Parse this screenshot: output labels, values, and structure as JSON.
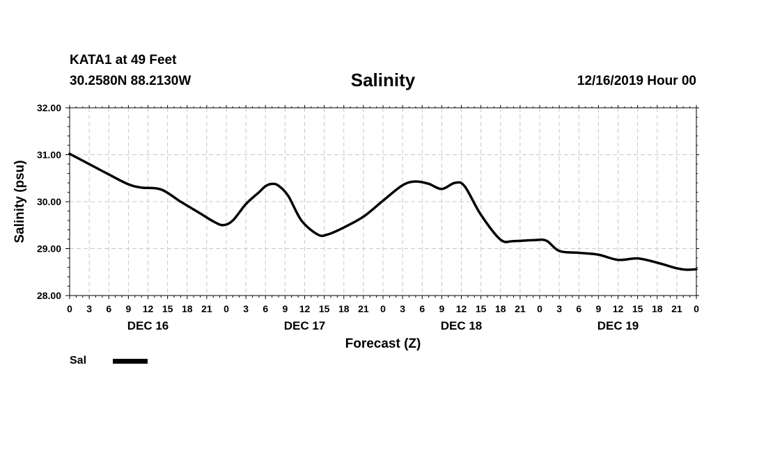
{
  "header": {
    "station": "KATA1 at 49 Feet",
    "coords": "30.2580N 88.2130W",
    "title": "Salinity",
    "run_time": "12/16/2019 Hour 00"
  },
  "chart_data": {
    "type": "line",
    "title": "Salinity",
    "xlabel": "Forecast (Z)",
    "ylabel": "Salinity (psu)",
    "ylim": [
      28.0,
      32.0
    ],
    "xlim_hours": [
      0,
      96
    ],
    "grid": true,
    "y_ticks": [
      28.0,
      29.0,
      30.0,
      31.0,
      32.0
    ],
    "y_tick_labels": [
      "28.00",
      "29.00",
      "30.00",
      "31.00",
      "32.00"
    ],
    "x_ticks_hours": [
      0,
      3,
      6,
      9,
      12,
      15,
      18,
      21,
      24,
      27,
      30,
      33,
      36,
      39,
      42,
      45,
      48,
      51,
      54,
      57,
      60,
      63,
      66,
      69,
      72,
      75,
      78,
      81,
      84,
      87,
      90,
      93,
      96
    ],
    "x_tick_labels": [
      "0",
      "3",
      "6",
      "9",
      "12",
      "15",
      "18",
      "21",
      "0",
      "3",
      "6",
      "9",
      "12",
      "15",
      "18",
      "21",
      "0",
      "3",
      "6",
      "9",
      "12",
      "15",
      "18",
      "21",
      "0",
      "3",
      "6",
      "9",
      "12",
      "15",
      "18",
      "21",
      "0"
    ],
    "day_labels": [
      {
        "label": "DEC 16",
        "hour": 12
      },
      {
        "label": "DEC 17",
        "hour": 36
      },
      {
        "label": "DEC 18",
        "hour": 60
      },
      {
        "label": "DEC 19",
        "hour": 84
      }
    ],
    "legend_placement": "bottom-left",
    "series": [
      {
        "name": "Sal",
        "color": "#000000",
        "points": [
          [
            0,
            31.02
          ],
          [
            3,
            30.8
          ],
          [
            6,
            30.58
          ],
          [
            9,
            30.37
          ],
          [
            11,
            30.3
          ],
          [
            14,
            30.26
          ],
          [
            17,
            30.0
          ],
          [
            20,
            29.75
          ],
          [
            22,
            29.58
          ],
          [
            23.5,
            29.5
          ],
          [
            25,
            29.6
          ],
          [
            27,
            29.95
          ],
          [
            29,
            30.2
          ],
          [
            30,
            30.33
          ],
          [
            31,
            30.38
          ],
          [
            32,
            30.34
          ],
          [
            33.5,
            30.12
          ],
          [
            35.5,
            29.6
          ],
          [
            38,
            29.3
          ],
          [
            39.5,
            29.3
          ],
          [
            42,
            29.45
          ],
          [
            45,
            29.68
          ],
          [
            48,
            30.02
          ],
          [
            51,
            30.35
          ],
          [
            53,
            30.43
          ],
          [
            55,
            30.38
          ],
          [
            57,
            30.27
          ],
          [
            59,
            30.4
          ],
          [
            60.5,
            30.33
          ],
          [
            63,
            29.72
          ],
          [
            66,
            29.19
          ],
          [
            68,
            29.16
          ],
          [
            71,
            29.18
          ],
          [
            73,
            29.17
          ],
          [
            75,
            28.95
          ],
          [
            78,
            28.91
          ],
          [
            81,
            28.87
          ],
          [
            84,
            28.76
          ],
          [
            87,
            28.79
          ],
          [
            90,
            28.7
          ],
          [
            93,
            28.58
          ],
          [
            94.5,
            28.55
          ],
          [
            96,
            28.56
          ]
        ]
      }
    ]
  },
  "legend": {
    "label": "Sal",
    "color": "#000000"
  }
}
